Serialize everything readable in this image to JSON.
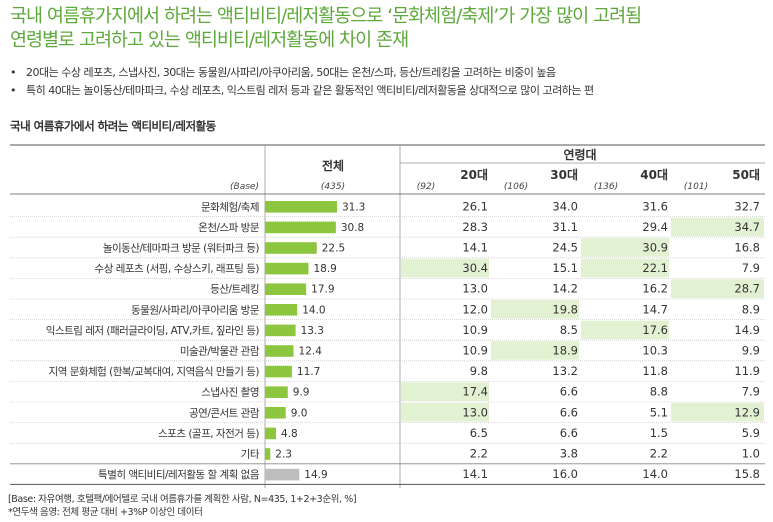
{
  "heading": {
    "title_line1": "국내 여름휴가지에서 하려는 액티비티/레저활동으로 ‘문화체험/축제’가 가장 많이 고려됨",
    "title_line2": "연령별로 고려하고 있는 액티비티/레저활동에 차이 존재"
  },
  "bullets": [
    "20대는 수상 레포츠, 스냅사진, 30대는 동물원/사파리/아쿠아리움, 50대는 온천/스파, 등산/트레킹을 고려하는 비중이 높음",
    "특히 40대는 놀이동산/테마파크, 수상 레포츠, 익스트림 레저 등과 같은 활동적인 액티비티/레저활동을 상대적으로 많이 고려하는 편"
  ],
  "footnote": {
    "line1": "[Base: 자유여행, 호텔팩/에어텔로 국내 여름휴가를 계획한 사람, N=435, 1+2+3순위, %]",
    "line2": "*연두색 음영: 전체 평균 대비 +3%P 이상인 데이터"
  },
  "colors": {
    "title_green": "#5fa83c",
    "bar_green": "#8cc63f",
    "bar_gray": "#bdbdbd",
    "highlight": "#e3f1d3"
  },
  "chart_data": {
    "type": "table",
    "title": "국내 여름휴가에서 하려는 액티비티/레저활동",
    "group_header": "연령대",
    "total_header": "전체",
    "columns": [
      "20대",
      "30대",
      "40대",
      "50대"
    ],
    "base_label": "(Base)",
    "base": {
      "total": "(435)",
      "groups": [
        "(92)",
        "(106)",
        "(136)",
        "(101)"
      ]
    },
    "bar_max": 40,
    "rows": [
      {
        "label": "문화체험/축제",
        "total": 31.3,
        "values": [
          26.1,
          34.0,
          31.6,
          32.7
        ],
        "highlight": [
          false,
          false,
          false,
          false
        ]
      },
      {
        "label": "온천/스파 방문",
        "total": 30.8,
        "values": [
          28.3,
          31.1,
          29.4,
          34.7
        ],
        "highlight": [
          false,
          false,
          false,
          true
        ]
      },
      {
        "label": "놀이동산/테마파크 방문 (워터파크 등)",
        "total": 22.5,
        "values": [
          14.1,
          24.5,
          30.9,
          16.8
        ],
        "highlight": [
          false,
          false,
          true,
          false
        ]
      },
      {
        "label": "수상 레포츠 (서핑, 수상스키, 래프팅 등)",
        "total": 18.9,
        "values": [
          30.4,
          15.1,
          22.1,
          7.9
        ],
        "highlight": [
          true,
          false,
          true,
          false
        ]
      },
      {
        "label": "등산/트레킹",
        "total": 17.9,
        "values": [
          13.0,
          14.2,
          16.2,
          28.7
        ],
        "highlight": [
          false,
          false,
          false,
          true
        ]
      },
      {
        "label": "동물원/사파리/아쿠아리움 방문",
        "total": 14.0,
        "values": [
          12.0,
          19.8,
          14.7,
          8.9
        ],
        "highlight": [
          false,
          true,
          false,
          false
        ]
      },
      {
        "label": "익스트림 레저 (패러글라이딩, ATV,카트, 짚라인 등)",
        "total": 13.3,
        "values": [
          10.9,
          8.5,
          17.6,
          14.9
        ],
        "highlight": [
          false,
          false,
          true,
          false
        ]
      },
      {
        "label": "미술관/박물관 관람",
        "total": 12.4,
        "values": [
          10.9,
          18.9,
          10.3,
          9.9
        ],
        "highlight": [
          false,
          true,
          false,
          false
        ]
      },
      {
        "label": "지역 문화체험 (한복/교복대여, 지역음식 만들기 등)",
        "total": 11.7,
        "values": [
          9.8,
          13.2,
          11.8,
          11.9
        ],
        "highlight": [
          false,
          false,
          false,
          false
        ]
      },
      {
        "label": "스냅사진 촬영",
        "total": 9.9,
        "values": [
          17.4,
          6.6,
          8.8,
          7.9
        ],
        "highlight": [
          true,
          false,
          false,
          false
        ]
      },
      {
        "label": "공연/콘서트 관람",
        "total": 9.0,
        "values": [
          13.0,
          6.6,
          5.1,
          12.9
        ],
        "highlight": [
          true,
          false,
          false,
          true
        ]
      },
      {
        "label": "스포츠 (골프, 자전거 등)",
        "total": 4.8,
        "values": [
          6.5,
          6.6,
          1.5,
          5.9
        ],
        "highlight": [
          false,
          false,
          false,
          false
        ]
      },
      {
        "label": "기타",
        "total": 2.3,
        "values": [
          2.2,
          3.8,
          2.2,
          1.0
        ],
        "highlight": [
          false,
          false,
          false,
          false
        ]
      },
      {
        "label": "특별히 액티비티/레저활동 할 계획 없음",
        "total": 14.9,
        "values": [
          14.1,
          16.0,
          14.0,
          15.8
        ],
        "highlight": [
          false,
          false,
          false,
          false
        ],
        "gray": true
      }
    ]
  }
}
